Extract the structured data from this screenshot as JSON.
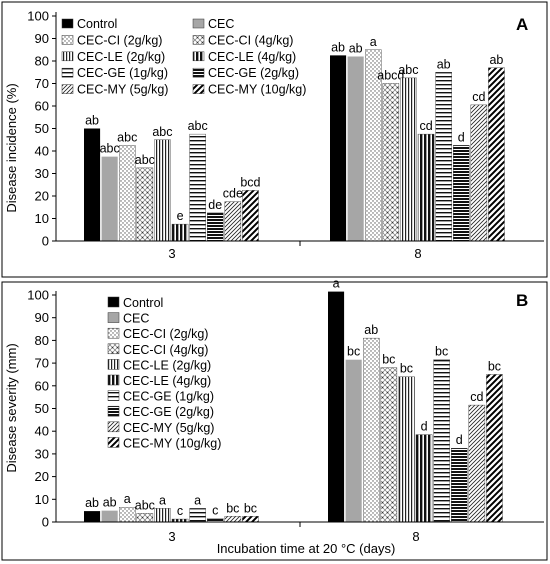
{
  "figure": {
    "xlabel": "Incubation time at 20 °C (days)"
  },
  "patterns": [
    "solid-black",
    "solid-gray",
    "dots-fine",
    "dots-coarse",
    "vertical-lines",
    "vertical-bold",
    "horizontal-lines",
    "horizontal-bold",
    "diag-dense",
    "diag-bold"
  ],
  "chart_data": [
    {
      "type": "bar",
      "panel_label": "A",
      "ylabel": "Disease incidence (%)",
      "ylim": [
        0,
        100
      ],
      "yticks": [
        0,
        10,
        20,
        30,
        40,
        50,
        60,
        70,
        80,
        90,
        100
      ],
      "categories": [
        "3",
        "8"
      ],
      "legend_layout": "two-column-top-left",
      "series": [
        {
          "name": "Control",
          "values": [
            50,
            82.5
          ],
          "letters": [
            "ab",
            "ab"
          ]
        },
        {
          "name": "CEC",
          "values": [
            37.5,
            82
          ],
          "letters": [
            "abc",
            "ab"
          ]
        },
        {
          "name": "CEC-CI (2g/kg)",
          "values": [
            42.5,
            85
          ],
          "letters": [
            "abc",
            "a"
          ]
        },
        {
          "name": "CEC-CI (4g/kg)",
          "values": [
            32.5,
            70
          ],
          "letters": [
            "abc",
            "abcd"
          ]
        },
        {
          "name": "CEC-LE (2g/kg)",
          "values": [
            45,
            72.5
          ],
          "letters": [
            "abc",
            "abc"
          ]
        },
        {
          "name": "CEC-LE (4g/kg)",
          "values": [
            7.5,
            47.5
          ],
          "letters": [
            "e",
            "cd"
          ]
        },
        {
          "name": "CEC-GE (1g/kg)",
          "values": [
            47.5,
            75
          ],
          "letters": [
            "abc",
            "ab"
          ]
        },
        {
          "name": "CEC-GE (2g/kg)",
          "values": [
            12.5,
            42.5
          ],
          "letters": [
            "de",
            "d"
          ]
        },
        {
          "name": "CEC-MY (5g/kg)",
          "values": [
            17.5,
            60.5
          ],
          "letters": [
            "cde",
            "cd"
          ]
        },
        {
          "name": "CEC-MY (10g/kg)",
          "values": [
            22.5,
            77
          ],
          "letters": [
            "bcd",
            "ab"
          ]
        }
      ]
    },
    {
      "type": "bar",
      "panel_label": "B",
      "ylabel": "Disease severity (mm)",
      "ylim": [
        0,
        100
      ],
      "yticks": [
        0,
        10,
        20,
        30,
        40,
        50,
        60,
        70,
        80,
        90,
        100
      ],
      "categories": [
        "3",
        "8"
      ],
      "legend_layout": "one-column-left",
      "series": [
        {
          "name": "Control",
          "values": [
            4.8,
            101.5
          ],
          "letters": [
            "ab",
            "a"
          ]
        },
        {
          "name": "CEC",
          "values": [
            5,
            71.5
          ],
          "letters": [
            "ab",
            "bc"
          ]
        },
        {
          "name": "CEC-CI (2g/kg)",
          "values": [
            6.5,
            81
          ],
          "letters": [
            "a",
            "ab"
          ]
        },
        {
          "name": "CEC-CI (4g/kg)",
          "values": [
            3.8,
            68
          ],
          "letters": [
            "abc",
            "bc"
          ]
        },
        {
          "name": "CEC-LE (2g/kg)",
          "values": [
            6,
            64
          ],
          "letters": [
            "a",
            "bc"
          ]
        },
        {
          "name": "CEC-LE (4g/kg)",
          "values": [
            1.3,
            38.5
          ],
          "letters": [
            "c",
            "d"
          ]
        },
        {
          "name": "CEC-GE (1g/kg)",
          "values": [
            6,
            71.5
          ],
          "letters": [
            "a",
            "bc"
          ]
        },
        {
          "name": "CEC-GE (2g/kg)",
          "values": [
            1.5,
            32.5
          ],
          "letters": [
            "c",
            "d"
          ]
        },
        {
          "name": "CEC-MY (5g/kg)",
          "values": [
            2.5,
            51.5
          ],
          "letters": [
            "bc",
            "cd"
          ]
        },
        {
          "name": "CEC-MY (10g/kg)",
          "values": [
            2.5,
            65
          ],
          "letters": [
            "bc",
            "bc"
          ]
        }
      ]
    }
  ]
}
